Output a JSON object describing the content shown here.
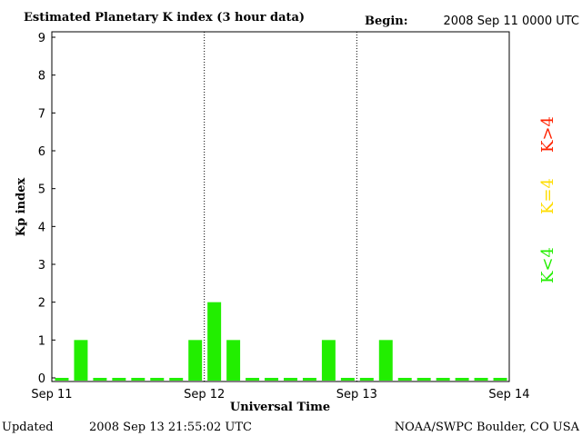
{
  "chart_data": {
    "type": "bar",
    "title": "Estimated Planetary K index (3 hour data)",
    "begin_label": "Begin:",
    "begin_value": "2008 Sep 11 0000 UTC",
    "ylabel": "Kp index",
    "xlabel": "Universal Time",
    "ylim": [
      0,
      9
    ],
    "yticks": [
      "0",
      "1",
      "2",
      "3",
      "4",
      "5",
      "6",
      "7",
      "8",
      "9"
    ],
    "xlim": [
      0,
      3
    ],
    "xticks": [
      {
        "value": 0,
        "label": "Sep 11"
      },
      {
        "value": 1,
        "label": "Sep 12"
      },
      {
        "value": 2,
        "label": "Sep 13"
      },
      {
        "value": 3,
        "label": "Sep 14"
      }
    ],
    "day_dividers": [
      1,
      2
    ],
    "bars_per_day": 8,
    "values": [
      0,
      1,
      0,
      0,
      0,
      0,
      0,
      1,
      2,
      1,
      0,
      0,
      0,
      0,
      1,
      0,
      0,
      1,
      0,
      0,
      0,
      0,
      0,
      0
    ],
    "colors": {
      "low": "#22ee00",
      "mid": "#ffdd00",
      "high": "#ff2200"
    },
    "legend": [
      {
        "label": "K<4",
        "color": "#22ee00"
      },
      {
        "label": "K=4",
        "color": "#ffdd00"
      },
      {
        "label": "K>4",
        "color": "#ff2200"
      }
    ],
    "grid": false,
    "legend_placement": "right, vertical"
  },
  "footer": {
    "updated_label": "Updated",
    "updated_value": "2008 Sep 13 21:55:02 UTC",
    "credit": "NOAA/SWPC Boulder, CO USA"
  }
}
